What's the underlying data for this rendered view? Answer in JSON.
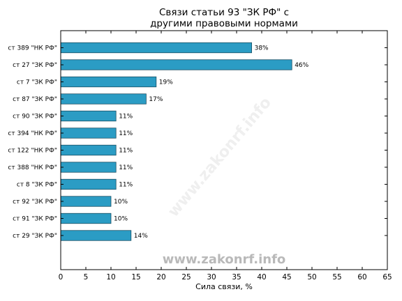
{
  "chart_data": {
    "type": "bar",
    "orientation": "horizontal",
    "title_lines": [
      "Связи статьи 93 \"ЗК РФ\" с",
      "другими правовыми нормами"
    ],
    "xlabel": "Сила связи, %",
    "ylabel": "",
    "xlim": [
      0,
      65
    ],
    "xticks": [
      0,
      5,
      10,
      15,
      20,
      25,
      30,
      35,
      40,
      45,
      50,
      55,
      60,
      65
    ],
    "grid": false,
    "categories": [
      "ст 389 \"НК РФ\"",
      "ст 27 \"ЗК РФ\"",
      "ст 7 \"ЗК РФ\"",
      "ст 87 \"ЗК РФ\"",
      "ст 90 \"ЗК РФ\"",
      "ст 394 \"НК РФ\"",
      "ст 122 \"НК РФ\"",
      "ст 388 \"НК РФ\"",
      "ст 8 \"ЗК РФ\"",
      "ст 92 \"ЗК РФ\"",
      "ст 91 \"ЗК РФ\"",
      "ст 29 \"ЗК РФ\""
    ],
    "values": [
      38,
      46,
      19,
      17,
      11,
      11,
      11,
      11,
      11,
      10,
      10,
      14
    ],
    "value_labels": [
      "38%",
      "46%",
      "19%",
      "17%",
      "11%",
      "11%",
      "11%",
      "11%",
      "11%",
      "10%",
      "10%",
      "14%"
    ],
    "bar_color": "#2b9cc4",
    "bar_edge_color": "#1a4f63"
  },
  "watermark": "www.zakonrf.info"
}
